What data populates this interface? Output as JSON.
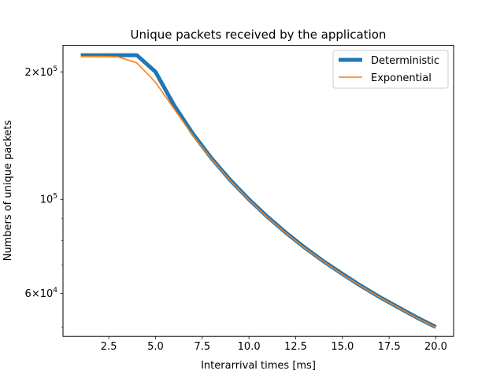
{
  "chart_data": {
    "type": "line",
    "title": "Unique packets received by the application",
    "xlabel": "Interarrival times [ms]",
    "ylabel": "Numbers of unique packets",
    "yscale": "log",
    "xlim": [
      0.05,
      20.95
    ],
    "ylim": [
      47500,
      231000
    ],
    "grid": false,
    "legend_position": "top-right",
    "x_ticks": [
      {
        "value": 2.5,
        "label": "2.5"
      },
      {
        "value": 5.0,
        "label": "5.0"
      },
      {
        "value": 7.5,
        "label": "7.5"
      },
      {
        "value": 10.0,
        "label": "10.0"
      },
      {
        "value": 12.5,
        "label": "12.5"
      },
      {
        "value": 15.0,
        "label": "15.0"
      },
      {
        "value": 17.5,
        "label": "17.5"
      },
      {
        "value": 20.0,
        "label": "20.0"
      }
    ],
    "y_ticks": [
      {
        "value": 60000,
        "base": "6",
        "exp": "4"
      },
      {
        "value": 100000,
        "base": "",
        "exp": "5"
      },
      {
        "value": 200000,
        "base": "2",
        "exp": "5"
      }
    ],
    "x": [
      1,
      2,
      3,
      4,
      5,
      6,
      7,
      8,
      9,
      10,
      11,
      12,
      13,
      14,
      15,
      16,
      17,
      18,
      19,
      20
    ],
    "series": [
      {
        "name": "Deterministic",
        "color": "#1f77b4",
        "values": [
          219000,
          219000,
          219000,
          219000,
          200000,
          166700,
          142900,
          125000,
          111100,
          100000,
          90900,
          83300,
          76900,
          71400,
          66700,
          62500,
          58800,
          55600,
          52600,
          50000
        ]
      },
      {
        "name": "Exponential",
        "color": "#ff7f0e",
        "values": [
          217500,
          217500,
          217000,
          210000,
          189000,
          163500,
          141500,
          124500,
          110700,
          99700,
          90600,
          83100,
          76700,
          71300,
          66500,
          62400,
          58700,
          55500,
          52500,
          49900
        ]
      }
    ]
  }
}
